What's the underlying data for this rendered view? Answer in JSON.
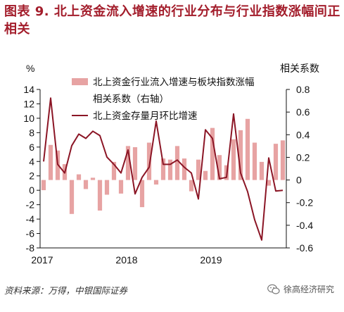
{
  "title": "图表 9. 北上资金流入增速的行业分布与行业指数涨幅间正相关",
  "source": "资料来源：万得，中银国际证券",
  "watermark": "徐高经济研究",
  "colors": {
    "bar": "#e7a3a3",
    "line": "#8b1525",
    "title": "#a31d2b"
  },
  "chart_data": {
    "type": "bar+line",
    "left_axis": {
      "label": "%",
      "ticks": [
        "14",
        "12",
        "10",
        "8",
        "6",
        "4",
        "2",
        "0",
        "-2",
        "-4",
        "-6",
        "-8"
      ],
      "ylim": [
        -8,
        14
      ]
    },
    "right_axis": {
      "label": "相关系数",
      "ticks": [
        "0.8",
        "0.6",
        "0.4",
        "0.2",
        "0",
        "-0.2",
        "-0.4",
        "-0.6"
      ],
      "ylim": [
        -0.6,
        0.8
      ]
    },
    "x_labels": [
      {
        "label": "2017",
        "index": 0
      },
      {
        "label": "2018",
        "index": 12
      },
      {
        "label": "2019",
        "index": 24
      }
    ],
    "legend": [
      {
        "label": "北上资金行业流入增速与板块指数涨幅相关系数（右轴）",
        "line1": "北上资金行业流入增速与板块指数涨幅",
        "line2": "相关系数（右轴）",
        "kind": "bar"
      },
      {
        "label": "北上资金存量月环比增速",
        "kind": "line"
      }
    ],
    "series": [
      {
        "name": "北上资金行业流入增速与板块指数涨幅相关系数（右轴）",
        "axis": "right",
        "kind": "bar",
        "values": [
          -0.09,
          0.31,
          0.26,
          0.14,
          -0.3,
          0.05,
          -0.08,
          0.02,
          -0.27,
          -0.13,
          0.16,
          -0.12,
          0.3,
          0.29,
          -0.24,
          0.33,
          -0.04,
          0.19,
          0.18,
          0.3,
          0.19,
          -0.1,
          0.18,
          0.08,
          0.46,
          0.22,
          0.13,
          0.36,
          0.44,
          0.54,
          0.33,
          0.16,
          -0.05,
          0.32,
          0.35
        ]
      },
      {
        "name": "北上资金存量月环比增速",
        "axis": "left",
        "kind": "line",
        "values": [
          4.0,
          12.8,
          3.6,
          2.4,
          6.2,
          7.8,
          7.2,
          8.2,
          7.6,
          4.6,
          3.6,
          2.4,
          5.6,
          -0.5,
          1.8,
          3.2,
          9.6,
          3.6,
          3.6,
          4.2,
          3.2,
          2.4,
          -1.2,
          8.4,
          7.2,
          1.6,
          1.8,
          10.6,
          2.4,
          -0.2,
          -4.1,
          -6.9,
          4.5,
          -0.1,
          0.0
        ]
      }
    ]
  }
}
